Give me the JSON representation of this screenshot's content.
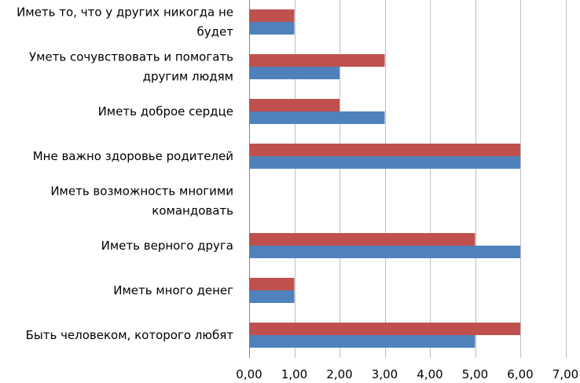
{
  "chart_data": {
    "type": "bar",
    "orientation": "horizontal",
    "title": "",
    "xlabel": "",
    "ylabel": "",
    "xlim": [
      0,
      7
    ],
    "x_ticks": [
      "0,00",
      "1,00",
      "2,00",
      "3,00",
      "4,00",
      "5,00",
      "6,00",
      "7,00"
    ],
    "grid": true,
    "legend": "none",
    "categories": [
      [
        "Иметь то, что у других никогда не",
        "будет"
      ],
      [
        "Уметь сочувствовать и помогать",
        "другим людям"
      ],
      [
        "Иметь доброе сердце"
      ],
      [
        "Мне важно здоровье родителей"
      ],
      [
        "Иметь возможность многими",
        "командовать"
      ],
      [
        "Иметь верного друга"
      ],
      [
        "Иметь много денег"
      ],
      [
        "Быть человеком, которого любят"
      ]
    ],
    "series": [
      {
        "color": "#C0504D",
        "values": [
          1,
          3,
          2,
          6,
          0,
          5,
          1,
          6
        ]
      },
      {
        "color": "#4F81BD",
        "values": [
          1,
          2,
          3,
          6,
          0,
          6,
          1,
          5
        ]
      }
    ]
  }
}
